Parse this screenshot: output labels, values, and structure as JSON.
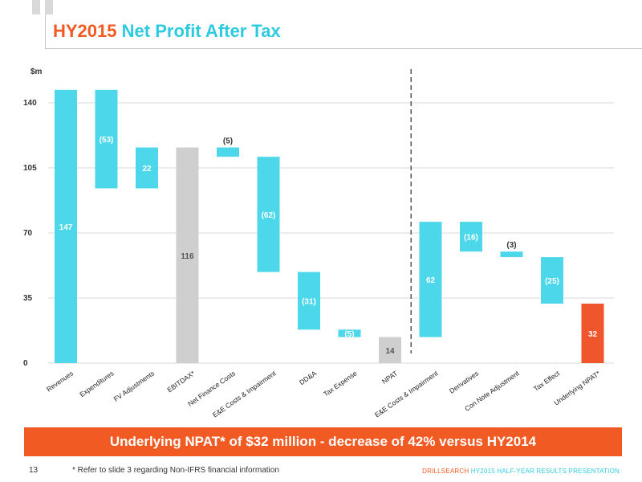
{
  "slide": {
    "title_accent": "HY2015",
    "title_main": "Net Profit After Tax",
    "banner": "Underlying NPAT* of $32 million - decrease of 42% versus HY2014",
    "page_number": "13",
    "footnote": "* Refer to slide 3 regarding Non-IFRS financial information",
    "footer_brand": "DRILLSEARCH",
    "footer_text": "HY2015 HALF-YEAR RESULTS PRESENTATION"
  },
  "colors": {
    "increase": "#4dd7ea",
    "subtotal": "#cfcfcf",
    "final": "#f1552b",
    "accent": "#f15a22",
    "grid": "#d9d9d9"
  },
  "chart_data": {
    "type": "bar",
    "subtype": "waterfall",
    "ylabel": "$m",
    "ylim": [
      0,
      140
    ],
    "yticks": [
      0,
      35,
      70,
      105,
      140
    ],
    "grid": true,
    "divider_after_category": "NPAT",
    "categories": [
      "Revenues",
      "Expenditures",
      "FV Adjustments",
      "EBITDAX*",
      "Net Finance Costs",
      "E&E Costs & Impairment",
      "DD&A",
      "Tax Expense",
      "NPAT",
      "E&E Costs & Impairment",
      "Derivatives",
      "Con Note Adjustment",
      "Tax Effect",
      "Underlying NPAT*"
    ],
    "bars": [
      {
        "label": "147",
        "start": 0,
        "end": 147,
        "kind": "increase",
        "label_pos": "inside",
        "label_color": "#ffffff"
      },
      {
        "label": "(53)",
        "start": 147,
        "end": 94,
        "kind": "increase",
        "label_pos": "inside",
        "label_color": "#ffffff"
      },
      {
        "label": "22",
        "start": 94,
        "end": 116,
        "kind": "increase",
        "label_pos": "inside",
        "label_color": "#ffffff"
      },
      {
        "label": "116",
        "start": 0,
        "end": 116,
        "kind": "subtotal",
        "label_pos": "inside",
        "label_color": "#555555"
      },
      {
        "label": "(5)",
        "start": 116,
        "end": 111,
        "kind": "increase",
        "label_pos": "above",
        "label_color": "#333333"
      },
      {
        "label": "(62)",
        "start": 111,
        "end": 49,
        "kind": "increase",
        "label_pos": "inside",
        "label_color": "#ffffff"
      },
      {
        "label": "(31)",
        "start": 49,
        "end": 18,
        "kind": "increase",
        "label_pos": "inside",
        "label_color": "#ffffff"
      },
      {
        "label": "(5)",
        "start": 18,
        "end": 14,
        "kind": "increase",
        "label_pos": "inside",
        "label_color": "#ffffff"
      },
      {
        "label": "14",
        "start": 0,
        "end": 14,
        "kind": "subtotal",
        "label_pos": "inside",
        "label_color": "#555555"
      },
      {
        "label": "62",
        "start": 14,
        "end": 76,
        "kind": "increase",
        "label_pos": "inside",
        "label_color": "#ffffff"
      },
      {
        "label": "(16)",
        "start": 76,
        "end": 60,
        "kind": "increase",
        "label_pos": "inside",
        "label_color": "#ffffff"
      },
      {
        "label": "(3)",
        "start": 60,
        "end": 57,
        "kind": "increase",
        "label_pos": "above",
        "label_color": "#333333"
      },
      {
        "label": "(25)",
        "start": 57,
        "end": 32,
        "kind": "increase",
        "label_pos": "inside",
        "label_color": "#ffffff"
      },
      {
        "label": "32",
        "start": 0,
        "end": 32,
        "kind": "final",
        "label_pos": "inside",
        "label_color": "#ffffff"
      }
    ]
  }
}
